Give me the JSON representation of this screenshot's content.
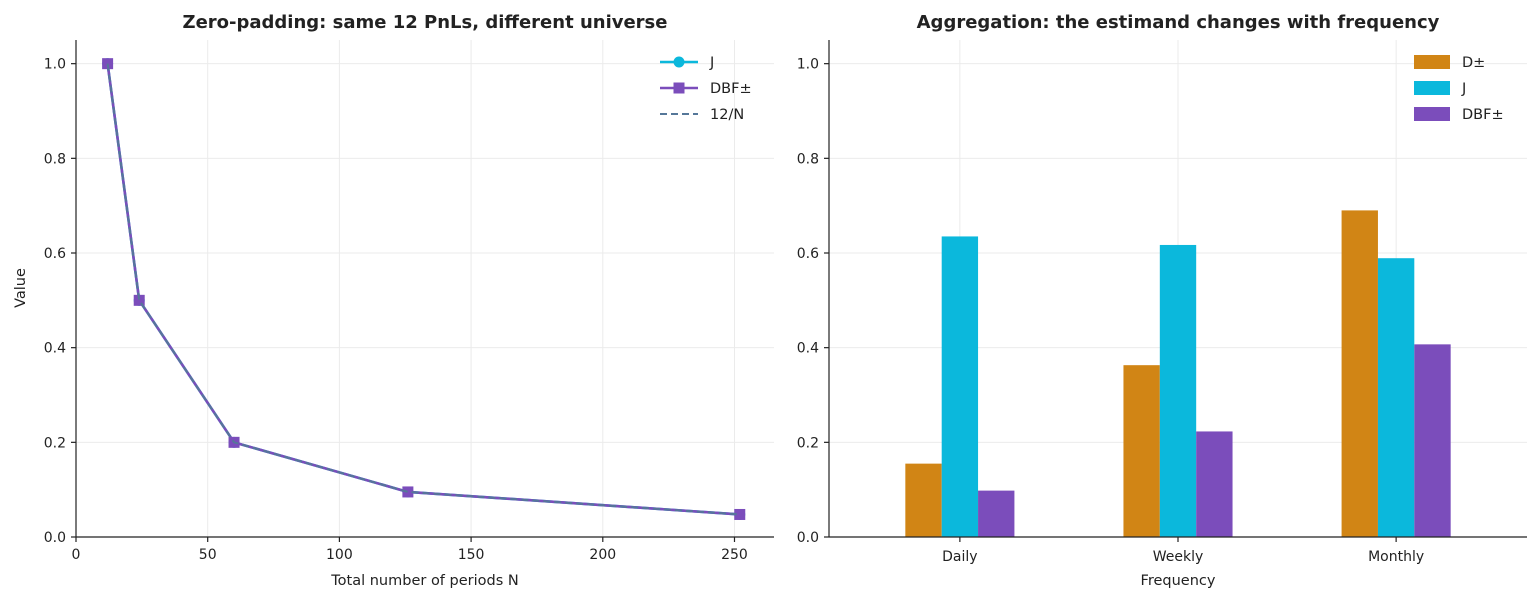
{
  "chart_data": [
    {
      "type": "line",
      "title": "Zero-padding: same 12 PnLs, different universe",
      "xlabel": "Total number of periods N",
      "ylabel": "Value",
      "xlim": [
        0,
        265
      ],
      "ylim": [
        0,
        1.05
      ],
      "xticks": [
        0,
        50,
        100,
        150,
        200,
        250
      ],
      "yticks": [
        0.0,
        0.2,
        0.4,
        0.6,
        0.8,
        1.0
      ],
      "xtick_labels": [
        "0",
        "50",
        "100",
        "150",
        "200",
        "250"
      ],
      "ytick_labels": [
        "0.0",
        "0.2",
        "0.4",
        "0.6",
        "0.8",
        "1.0"
      ],
      "grid": true,
      "legend_position": "top-right",
      "x": [
        12,
        24,
        60,
        126,
        252
      ],
      "series": [
        {
          "name": "J",
          "values": [
            1.0,
            0.5,
            0.2,
            0.0952,
            0.0476
          ],
          "color": "#0bb8dc",
          "marker": "circle",
          "style": "solid"
        },
        {
          "name": "DBF±",
          "values": [
            1.0,
            0.5,
            0.2,
            0.0952,
            0.0476
          ],
          "color": "#7b4dbb",
          "marker": "square",
          "style": "solid"
        },
        {
          "name": "12/N",
          "values": [
            1.0,
            0.5,
            0.2,
            0.0952,
            0.0476
          ],
          "color": "#557799",
          "marker": "none",
          "style": "dashed"
        }
      ]
    },
    {
      "type": "bar",
      "title": "Aggregation: the estimand changes with frequency",
      "xlabel": "Frequency",
      "ylabel": "",
      "ylim": [
        0,
        1.05
      ],
      "yticks": [
        0.0,
        0.2,
        0.4,
        0.6,
        0.8,
        1.0
      ],
      "ytick_labels": [
        "0.0",
        "0.2",
        "0.4",
        "0.6",
        "0.8",
        "1.0"
      ],
      "grid": true,
      "legend_position": "top-right",
      "categories": [
        "Daily",
        "Weekly",
        "Monthly"
      ],
      "series": [
        {
          "name": "D±",
          "values": [
            0.155,
            0.363,
            0.69
          ],
          "color": "#d18515"
        },
        {
          "name": "J",
          "values": [
            0.635,
            0.617,
            0.589
          ],
          "color": "#0bb8dc"
        },
        {
          "name": "DBF±",
          "values": [
            0.098,
            0.223,
            0.407
          ],
          "color": "#7b4dbb"
        }
      ]
    }
  ]
}
